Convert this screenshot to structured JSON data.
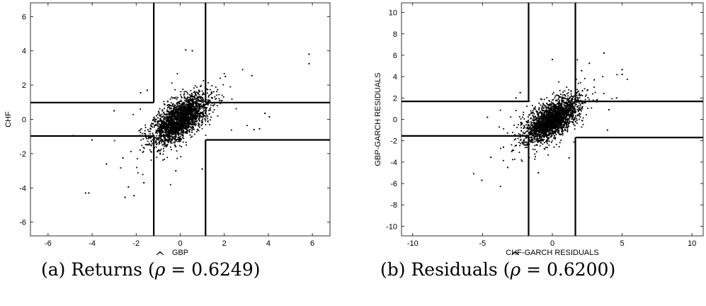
{
  "chart_data": [
    {
      "type": "scatter",
      "title": "",
      "xlabel": "GBP",
      "ylabel": "CHF",
      "xlim": [
        -6.8,
        6.8
      ],
      "ylim": [
        -6.8,
        6.8
      ],
      "xticks": [
        -6,
        -4,
        -2,
        0,
        2,
        4,
        6
      ],
      "yticks": [
        -6,
        -4,
        -2,
        0,
        2,
        4,
        6
      ],
      "grid": false,
      "thresholds": {
        "x_low": -1.2,
        "x_high": 1.15,
        "y_high": 0.98,
        "y_low_left": -0.97,
        "y_low_right": -1.2
      },
      "points": {
        "count": 2400,
        "correlation": 0.6249,
        "sd_x": 0.62,
        "sd_y": 0.7,
        "outliers": [
          [
            5.85,
            3.8
          ],
          [
            5.85,
            3.25
          ],
          [
            -4.3,
            -4.3
          ],
          [
            -4.15,
            -4.3
          ],
          [
            -2.5,
            -4.55
          ],
          [
            -2.1,
            -4.45
          ],
          [
            -2.35,
            -3.95
          ],
          [
            -4.85,
            -0.95
          ],
          [
            -4.0,
            -1.2
          ],
          [
            3.85,
            0.35
          ],
          [
            4.05,
            0.15
          ],
          [
            3.6,
            -0.55
          ],
          [
            0.25,
            4.05
          ],
          [
            0.55,
            4.0
          ],
          [
            -3.0,
            0.5
          ],
          [
            -1.8,
            1.55
          ],
          [
            -1.5,
            1.7
          ],
          [
            -1.65,
            -3.7
          ],
          [
            -0.2,
            -3.0
          ],
          [
            3.25,
            2.55
          ],
          [
            3.35,
            -0.6
          ],
          [
            -3.35,
            -2.6
          ],
          [
            -2.6,
            -2.25
          ],
          [
            2.05,
            2.5
          ],
          [
            1.0,
            -2.9
          ]
        ]
      }
    },
    {
      "type": "scatter",
      "title": "",
      "xlabel": "CHF-GARCH RESIDUALS",
      "ylabel": "GBP-GARCH RESIDUALS",
      "xlim": [
        -10.8,
        10.8
      ],
      "ylim": [
        -10.9,
        10.9
      ],
      "xticks": [
        -10,
        -5,
        0,
        5,
        10
      ],
      "yticks": [
        -10,
        -8,
        -6,
        -4,
        -2,
        0,
        2,
        4,
        6,
        8,
        10
      ],
      "grid": false,
      "thresholds": {
        "x_low": -1.7,
        "x_high": 1.65,
        "y_high": 1.68,
        "y_low_left": -1.55,
        "y_low_right": -1.7
      },
      "points": {
        "count": 2400,
        "correlation": 0.62,
        "sd_x": 0.95,
        "sd_y": 1.0,
        "outliers": [
          [
            5.0,
            4.65
          ],
          [
            5.0,
            4.2
          ],
          [
            -5.05,
            -5.7
          ],
          [
            3.7,
            6.2
          ],
          [
            -2.3,
            2.5
          ],
          [
            -2.6,
            2.0
          ],
          [
            2.65,
            5.25
          ],
          [
            4.05,
            0.9
          ],
          [
            3.95,
            -1.0
          ],
          [
            -4.4,
            -3.55
          ],
          [
            -4.65,
            0.2
          ],
          [
            -3.2,
            -4.5
          ],
          [
            0.0,
            5.6
          ],
          [
            -1.0,
            -5.0
          ],
          [
            2.1,
            4.55
          ],
          [
            -3.5,
            -2.6
          ],
          [
            3.0,
            3.7
          ],
          [
            1.2,
            -3.6
          ],
          [
            -2.9,
            -3.0
          ],
          [
            4.6,
            2.0
          ]
        ]
      }
    }
  ],
  "captions": {
    "a": {
      "prefix": "(a) Returns (",
      "rho": "ρ",
      "hat": "^",
      "suffix": " = 0.6249)"
    },
    "b": {
      "prefix": "(b) Residuals (",
      "rho": "ρ",
      "hat": "^",
      "suffix": " = 0.6200)"
    }
  }
}
